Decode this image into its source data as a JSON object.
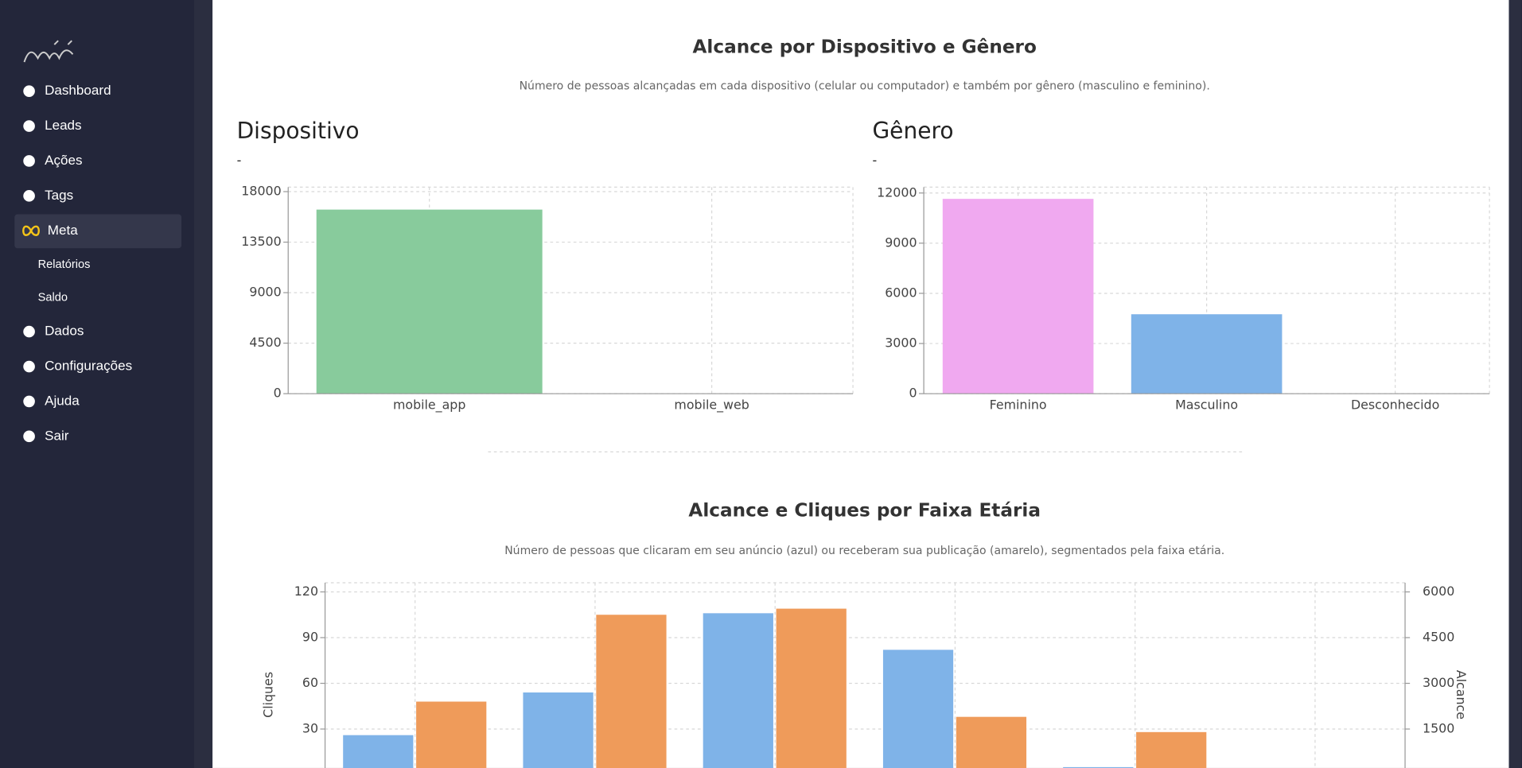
{
  "nav": [
    {
      "label": "Dashboard"
    },
    {
      "label": "Leads"
    },
    {
      "label": "Ações"
    },
    {
      "label": "Tags"
    },
    {
      "label": "Meta",
      "active": true,
      "sub": [
        "Relatórios",
        "Saldo"
      ]
    },
    {
      "label": "Dados"
    },
    {
      "label": "Configurações"
    },
    {
      "label": "Ajuda"
    },
    {
      "label": "Sair"
    }
  ],
  "sections": [
    {
      "title": "Alcance por Dispositivo e Gênero",
      "subtitle": "Número de pessoas alcançadas em cada dispositivo (celular ou computador) e também por gênero (masculino e feminino)."
    },
    {
      "title": "Alcance e Cliques por Faixa Etária",
      "subtitle": "Número de pessoas que clicaram em seu anúncio (azul) ou receberam sua publicação (amarelo), segmentados pela faixa etária."
    }
  ],
  "chart_data": [
    {
      "type": "bar",
      "title": "Dispositivo",
      "subtitle": "-",
      "categories": [
        "mobile_app",
        "mobile_web"
      ],
      "values": [
        16400,
        0
      ],
      "color": "#88cb9c",
      "ylim": [
        0,
        18400
      ],
      "yticks": [
        0,
        4500,
        9000,
        13500,
        18000
      ],
      "grid": true
    },
    {
      "type": "bar",
      "title": "Gênero",
      "subtitle": "-",
      "categories": [
        "Feminino",
        "Masculino",
        "Desconhecido"
      ],
      "values": [
        11650,
        4750,
        0
      ],
      "colors": [
        "#f0a9f0",
        "#7fb3e8",
        "#7fb3e8"
      ],
      "ylim": [
        0,
        12350
      ],
      "yticks": [
        0,
        3000,
        6000,
        9000,
        12000
      ],
      "grid": true
    },
    {
      "type": "bar",
      "y_label": "Cliques",
      "y2_label": "Alcance",
      "categories": [
        null,
        null,
        null,
        null,
        null,
        null
      ],
      "series": [
        {
          "color": "#7fb3e8",
          "values": [
            26,
            54,
            106,
            82,
            5,
            0
          ]
        },
        {
          "color": "#ef9b5a",
          "values": [
            2400,
            5250,
            5450,
            1900,
            1400,
            0
          ],
          "axis": "y2"
        }
      ],
      "ylim": [
        0,
        126
      ],
      "yticks": [
        30,
        60,
        90,
        120
      ],
      "y2lim": [
        0,
        6300
      ],
      "y2ticks": [
        1500,
        3000,
        4500,
        6000
      ],
      "grid": true
    }
  ]
}
